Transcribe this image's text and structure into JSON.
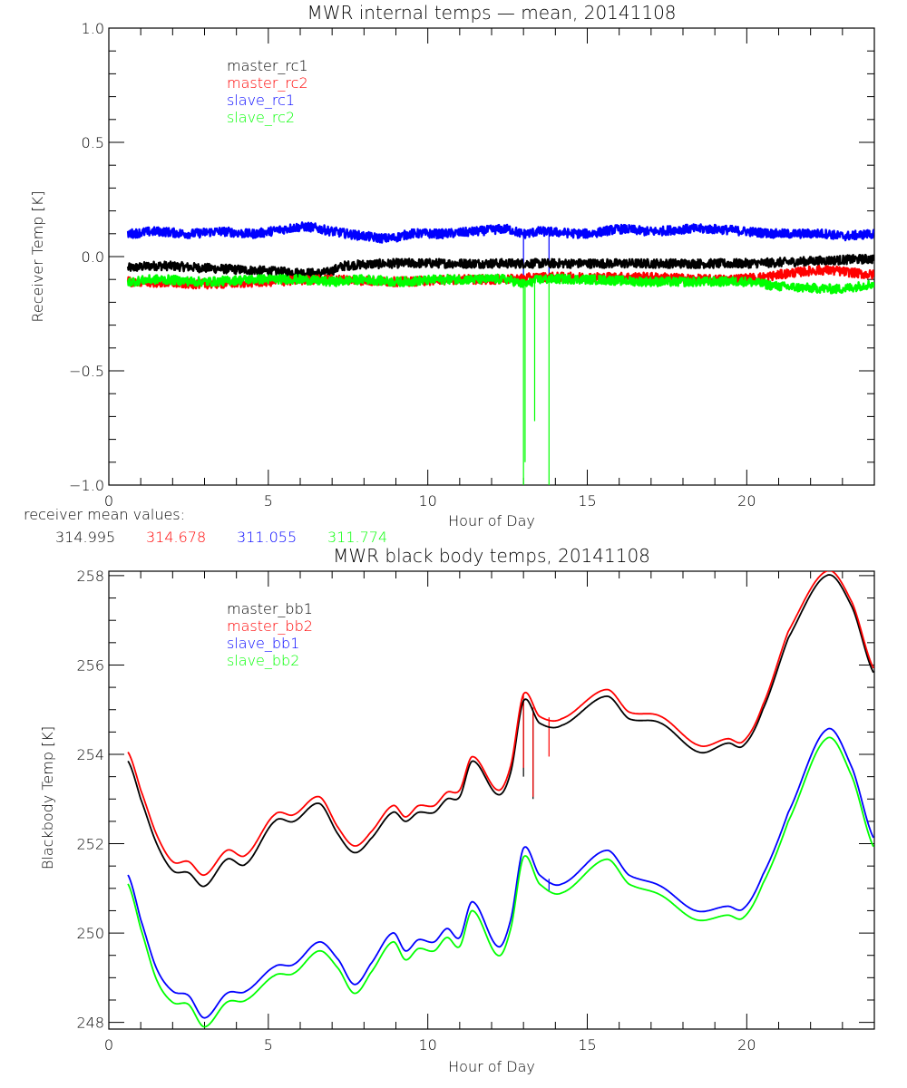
{
  "chart_data": [
    {
      "type": "line",
      "title": "MWR internal temps — mean, 20141108",
      "xlabel": "Hour of Day",
      "ylabel": "Receiver Temp [K]",
      "xlim": [
        0,
        24
      ],
      "ylim": [
        -1.0,
        1.0
      ],
      "x_ticks": [
        0,
        5,
        10,
        15,
        20
      ],
      "x_tick_labels": [
        "0",
        "5",
        "10",
        "15",
        "20"
      ],
      "y_ticks": [
        1.0,
        0.5,
        0.0,
        -0.5,
        -1.0
      ],
      "y_tick_labels": [
        "1.0",
        "0.5",
        "0.0",
        "−0.5",
        "−1.0"
      ],
      "grid": false,
      "legend_position": "top-left",
      "series": [
        {
          "name": "master_rc1",
          "color": "#000000",
          "points": [
            [
              0.6,
              -0.05
            ],
            [
              1.5,
              -0.04
            ],
            [
              3,
              -0.05
            ],
            [
              4.5,
              -0.06
            ],
            [
              6,
              -0.07
            ],
            [
              6.8,
              -0.07
            ],
            [
              7.4,
              -0.04
            ],
            [
              9,
              -0.03
            ],
            [
              11,
              -0.03
            ],
            [
              13,
              -0.03
            ],
            [
              15,
              -0.03
            ],
            [
              17,
              -0.03
            ],
            [
              20,
              -0.03
            ],
            [
              22,
              -0.02
            ],
            [
              24,
              -0.01
            ]
          ]
        },
        {
          "name": "master_rc2",
          "color": "#ff0000",
          "points": [
            [
              0.6,
              -0.11
            ],
            [
              3,
              -0.12
            ],
            [
              5,
              -0.11
            ],
            [
              7,
              -0.1
            ],
            [
              9,
              -0.11
            ],
            [
              11,
              -0.1
            ],
            [
              12.5,
              -0.1
            ],
            [
              13.5,
              -0.09
            ],
            [
              15,
              -0.09
            ],
            [
              17,
              -0.09
            ],
            [
              19,
              -0.1
            ],
            [
              20.5,
              -0.09
            ],
            [
              21.5,
              -0.07
            ],
            [
              22.5,
              -0.06
            ],
            [
              24,
              -0.08
            ]
          ]
        },
        {
          "name": "slave_rc1",
          "color": "#0000ff",
          "points": [
            [
              0.6,
              0.1
            ],
            [
              1.5,
              0.11
            ],
            [
              2.5,
              0.1
            ],
            [
              3.5,
              0.11
            ],
            [
              4.5,
              0.1
            ],
            [
              5.5,
              0.12
            ],
            [
              6.2,
              0.13
            ],
            [
              7,
              0.11
            ],
            [
              8,
              0.09
            ],
            [
              8.8,
              0.08
            ],
            [
              9.5,
              0.1
            ],
            [
              10.5,
              0.1
            ],
            [
              11.5,
              0.11
            ],
            [
              12.5,
              0.12
            ],
            [
              13,
              0.1
            ],
            [
              13.5,
              0.11
            ],
            [
              15,
              0.1
            ],
            [
              16,
              0.12
            ],
            [
              17,
              0.11
            ],
            [
              18,
              0.12
            ],
            [
              19,
              0.12
            ],
            [
              20,
              0.11
            ],
            [
              21,
              0.1
            ],
            [
              22.5,
              0.1
            ],
            [
              23,
              0.09
            ],
            [
              24,
              0.1
            ]
          ]
        },
        {
          "name": "slave_rc2",
          "color": "#00ff00",
          "points": [
            [
              0.6,
              -0.11
            ],
            [
              1.5,
              -0.1
            ],
            [
              3,
              -0.11
            ],
            [
              4.5,
              -0.1
            ],
            [
              6,
              -0.1
            ],
            [
              7,
              -0.11
            ],
            [
              8,
              -0.1
            ],
            [
              9,
              -0.11
            ],
            [
              10.5,
              -0.1
            ],
            [
              11.5,
              -0.1
            ],
            [
              12.5,
              -0.1
            ],
            [
              13,
              -0.12
            ],
            [
              13.5,
              -0.1
            ],
            [
              15,
              -0.1
            ],
            [
              17,
              -0.11
            ],
            [
              19,
              -0.11
            ],
            [
              20,
              -0.11
            ],
            [
              21,
              -0.13
            ],
            [
              22.5,
              -0.14
            ],
            [
              23,
              -0.14
            ],
            [
              24,
              -0.12
            ]
          ]
        }
      ],
      "spikes": [
        {
          "series": "slave_rc2",
          "x": 13.0,
          "to": -1.0
        },
        {
          "series": "slave_rc2",
          "x": 13.05,
          "to": -0.9
        },
        {
          "series": "slave_rc2",
          "x": 13.35,
          "to": -0.72
        },
        {
          "series": "slave_rc2",
          "x": 13.8,
          "to": -1.0
        },
        {
          "series": "slave_rc1",
          "x": 13.0,
          "to": -0.12
        },
        {
          "series": "slave_rc1",
          "x": 13.8,
          "to": -0.1
        }
      ]
    },
    {
      "type": "line",
      "title": "MWR black body temps, 20141108",
      "xlabel": "Hour of Day",
      "ylabel": "Blackbody Temp [K]",
      "xlim": [
        0,
        24
      ],
      "ylim": [
        247.85,
        258.1
      ],
      "x_ticks": [
        0,
        5,
        10,
        15,
        20
      ],
      "x_tick_labels": [
        "0",
        "5",
        "10",
        "15",
        "20"
      ],
      "y_ticks": [
        258,
        256,
        254,
        252,
        250,
        248
      ],
      "y_tick_labels": [
        "258",
        "256",
        "254",
        "252",
        "250",
        "248"
      ],
      "grid": false,
      "legend_position": "top-left",
      "series": [
        {
          "name": "master_bb1",
          "color": "#000000",
          "points": [
            [
              0.6,
              253.85
            ],
            [
              1.0,
              253.0
            ],
            [
              1.5,
              252.0
            ],
            [
              2.0,
              251.4
            ],
            [
              2.5,
              251.35
            ],
            [
              3.0,
              251.05
            ],
            [
              3.7,
              251.65
            ],
            [
              4.3,
              251.55
            ],
            [
              5.2,
              252.5
            ],
            [
              5.8,
              252.5
            ],
            [
              6.6,
              252.9
            ],
            [
              7.2,
              252.2
            ],
            [
              7.7,
              251.8
            ],
            [
              8.2,
              252.1
            ],
            [
              8.9,
              252.7
            ],
            [
              9.3,
              252.5
            ],
            [
              9.7,
              252.7
            ],
            [
              10.2,
              252.7
            ],
            [
              10.6,
              253.0
            ],
            [
              11.0,
              253.05
            ],
            [
              11.4,
              253.85
            ],
            [
              12.2,
              253.1
            ],
            [
              12.6,
              253.6
            ],
            [
              13.0,
              255.2
            ],
            [
              13.5,
              254.7
            ],
            [
              14.2,
              254.65
            ],
            [
              15.6,
              255.3
            ],
            [
              16.3,
              254.8
            ],
            [
              17.3,
              254.7
            ],
            [
              18.5,
              254.05
            ],
            [
              19.4,
              254.25
            ],
            [
              19.9,
              254.2
            ],
            [
              20.5,
              255.0
            ],
            [
              21.3,
              256.6
            ],
            [
              22.5,
              258.0
            ],
            [
              23.3,
              257.3
            ],
            [
              24.0,
              255.8
            ]
          ]
        },
        {
          "name": "master_bb2",
          "color": "#ff0000",
          "points": [
            [
              0.6,
              254.05
            ],
            [
              1.0,
              253.2
            ],
            [
              1.5,
              252.2
            ],
            [
              2.0,
              251.6
            ],
            [
              2.5,
              251.6
            ],
            [
              3.0,
              251.3
            ],
            [
              3.7,
              251.85
            ],
            [
              4.3,
              251.75
            ],
            [
              5.2,
              252.65
            ],
            [
              5.8,
              252.65
            ],
            [
              6.6,
              253.05
            ],
            [
              7.2,
              252.35
            ],
            [
              7.7,
              251.95
            ],
            [
              8.2,
              252.25
            ],
            [
              8.9,
              252.85
            ],
            [
              9.3,
              252.6
            ],
            [
              9.7,
              252.85
            ],
            [
              10.2,
              252.85
            ],
            [
              10.6,
              253.15
            ],
            [
              11.0,
              253.2
            ],
            [
              11.4,
              253.95
            ],
            [
              12.2,
              253.2
            ],
            [
              12.6,
              253.75
            ],
            [
              13.0,
              255.35
            ],
            [
              13.5,
              254.85
            ],
            [
              14.2,
              254.8
            ],
            [
              15.6,
              255.45
            ],
            [
              16.3,
              254.95
            ],
            [
              17.3,
              254.85
            ],
            [
              18.5,
              254.2
            ],
            [
              19.4,
              254.35
            ],
            [
              19.9,
              254.3
            ],
            [
              20.5,
              255.1
            ],
            [
              21.3,
              256.75
            ],
            [
              22.5,
              258.1
            ],
            [
              23.3,
              257.4
            ],
            [
              24.0,
              255.9
            ]
          ]
        },
        {
          "name": "slave_bb1",
          "color": "#0000ff",
          "points": [
            [
              0.6,
              251.3
            ],
            [
              1.0,
              250.3
            ],
            [
              1.5,
              249.2
            ],
            [
              2.0,
              248.7
            ],
            [
              2.5,
              248.6
            ],
            [
              3.0,
              248.1
            ],
            [
              3.7,
              248.65
            ],
            [
              4.3,
              248.7
            ],
            [
              5.2,
              249.25
            ],
            [
              5.8,
              249.3
            ],
            [
              6.6,
              249.8
            ],
            [
              7.2,
              249.4
            ],
            [
              7.7,
              248.85
            ],
            [
              8.2,
              249.3
            ],
            [
              8.9,
              250.0
            ],
            [
              9.3,
              249.6
            ],
            [
              9.7,
              249.85
            ],
            [
              10.2,
              249.8
            ],
            [
              10.6,
              250.1
            ],
            [
              11.0,
              249.9
            ],
            [
              11.4,
              250.7
            ],
            [
              12.2,
              249.7
            ],
            [
              12.6,
              250.3
            ],
            [
              13.0,
              251.9
            ],
            [
              13.5,
              251.3
            ],
            [
              14.2,
              251.1
            ],
            [
              15.6,
              251.85
            ],
            [
              16.3,
              251.3
            ],
            [
              17.3,
              251.05
            ],
            [
              18.4,
              250.5
            ],
            [
              19.4,
              250.6
            ],
            [
              19.9,
              250.55
            ],
            [
              20.5,
              251.3
            ],
            [
              21.3,
              252.7
            ],
            [
              22.5,
              254.55
            ],
            [
              23.3,
              253.7
            ],
            [
              24.0,
              252.1
            ]
          ]
        },
        {
          "name": "slave_bb2",
          "color": "#00ff00",
          "points": [
            [
              0.6,
              251.1
            ],
            [
              1.0,
              250.1
            ],
            [
              1.5,
              248.95
            ],
            [
              2.0,
              248.45
            ],
            [
              2.5,
              248.4
            ],
            [
              3.0,
              247.9
            ],
            [
              3.7,
              248.45
            ],
            [
              4.3,
              248.5
            ],
            [
              5.2,
              249.05
            ],
            [
              5.8,
              249.1
            ],
            [
              6.6,
              249.6
            ],
            [
              7.2,
              249.2
            ],
            [
              7.7,
              248.65
            ],
            [
              8.2,
              249.1
            ],
            [
              8.9,
              249.8
            ],
            [
              9.3,
              249.4
            ],
            [
              9.7,
              249.65
            ],
            [
              10.2,
              249.6
            ],
            [
              10.6,
              249.9
            ],
            [
              11.0,
              249.7
            ],
            [
              11.4,
              250.5
            ],
            [
              12.2,
              249.5
            ],
            [
              12.6,
              250.1
            ],
            [
              13.0,
              251.7
            ],
            [
              13.5,
              251.1
            ],
            [
              14.2,
              250.9
            ],
            [
              15.6,
              251.65
            ],
            [
              16.3,
              251.1
            ],
            [
              17.3,
              250.85
            ],
            [
              18.4,
              250.3
            ],
            [
              19.4,
              250.4
            ],
            [
              19.9,
              250.35
            ],
            [
              20.5,
              251.1
            ],
            [
              21.3,
              252.5
            ],
            [
              22.5,
              254.35
            ],
            [
              23.3,
              253.5
            ],
            [
              24.0,
              251.9
            ]
          ]
        }
      ],
      "spikes": [
        {
          "series": "master_bb1",
          "x": 13.0,
          "to": 253.5
        },
        {
          "series": "master_bb2",
          "x": 13.0,
          "to": 253.7
        },
        {
          "series": "master_bb1",
          "x": 13.3,
          "to": 253.0
        },
        {
          "series": "master_bb2",
          "x": 13.3,
          "to": 253.05
        },
        {
          "series": "master_bb2",
          "x": 13.8,
          "to": 253.95
        },
        {
          "series": "slave_bb1",
          "x": 13.8,
          "to": 250.95
        }
      ]
    }
  ],
  "receiver_mean": {
    "label": "receiver mean values:",
    "values": [
      {
        "text": "314.995",
        "color": "#000000"
      },
      {
        "text": "314.678",
        "color": "#ff0000"
      },
      {
        "text": "311.055",
        "color": "#0000ff"
      },
      {
        "text": "311.774",
        "color": "#00ff00"
      }
    ]
  }
}
